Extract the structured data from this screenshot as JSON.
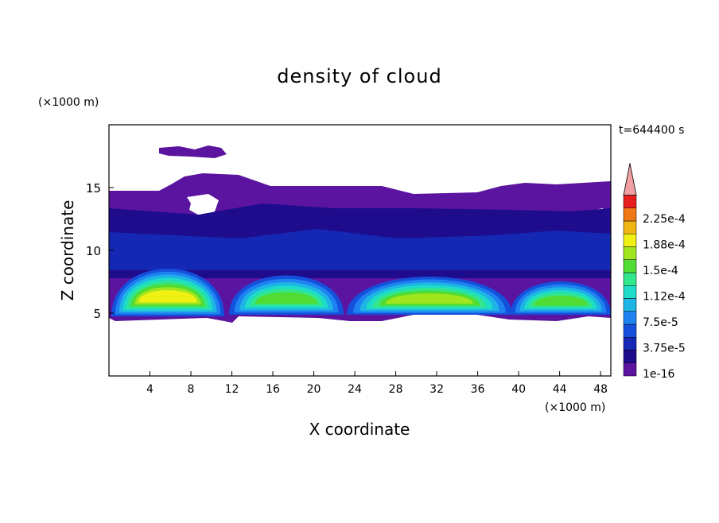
{
  "chart_data": {
    "type": "contour",
    "title": "density of cloud",
    "x_label": "X coordinate",
    "y_label": "Z coordinate",
    "x_unit": "(×1000 m)",
    "y_unit": "(×1000 m)",
    "time_label": "t=644400 s",
    "xlim": [
      0,
      49
    ],
    "ylim": [
      0,
      20
    ],
    "xticks": [
      4,
      8,
      12,
      16,
      20,
      24,
      28,
      32,
      36,
      40,
      44,
      48
    ],
    "yticks": [
      5,
      10,
      15
    ],
    "colorbar": {
      "ticks": [
        {
          "value": 1e-16,
          "label": "1e-16"
        },
        {
          "value": 3.75e-05,
          "label": "3.75e-5"
        },
        {
          "value": 7.5e-05,
          "label": "7.5e-5"
        },
        {
          "value": 0.000112,
          "label": "1.12e-4"
        },
        {
          "value": 0.00015,
          "label": "1.5e-4"
        },
        {
          "value": 0.000188,
          "label": "1.88e-4"
        },
        {
          "value": 0.000225,
          "label": "2.25e-4"
        }
      ],
      "colors": [
        "#5a14a0",
        "#1e0c8c",
        "#1428b4",
        "#1450dc",
        "#1e82f0",
        "#1eb4e6",
        "#1edcc8",
        "#32e68c",
        "#50dc32",
        "#a0e61e",
        "#f0f014",
        "#f0b414",
        "#f07814",
        "#e61e1e"
      ],
      "extend_color": "#f0a0a0"
    }
  }
}
